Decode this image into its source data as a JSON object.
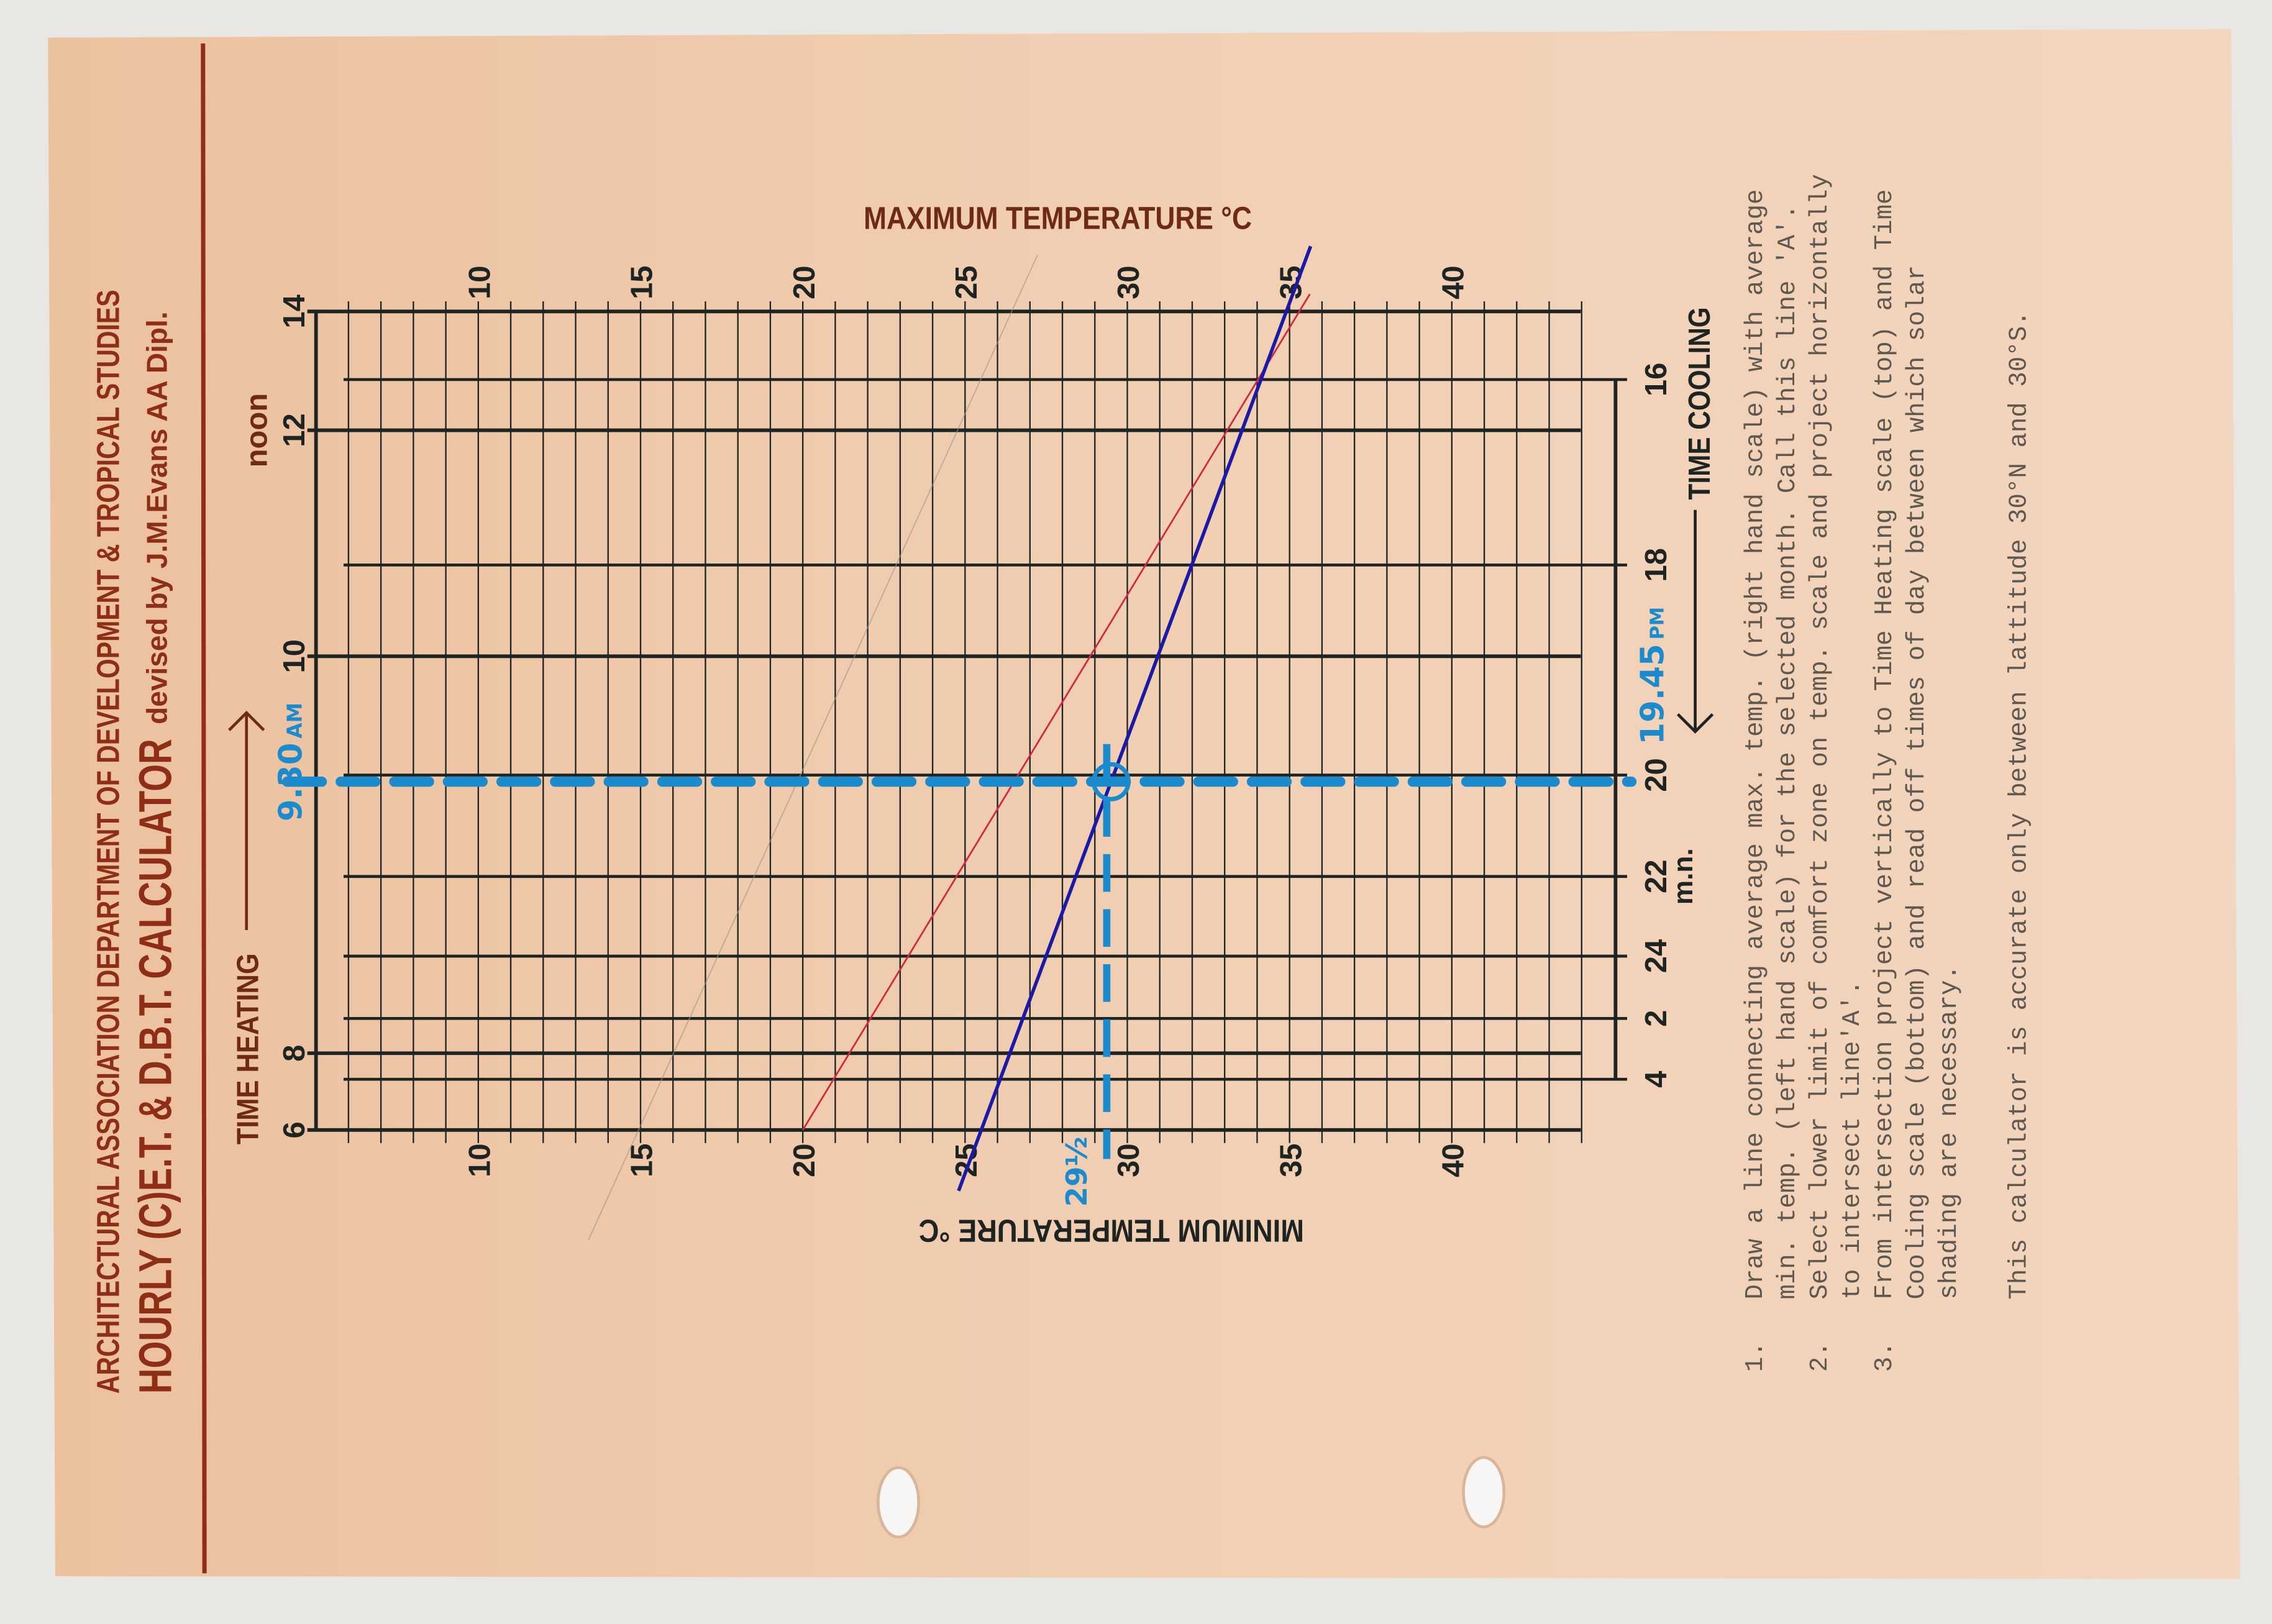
{
  "header": {
    "institution": "ARCHITECTURAL ASSOCIATION DEPARTMENT OF DEVELOPMENT & TROPICAL STUDIES",
    "title": "HOURLY (C)E.T. & D.B.T. CALCULATOR",
    "byline": "devised by J.M.Evans AA Dipl."
  },
  "colors": {
    "paper": "#f1cfb3",
    "title_ink": "#8e2e16",
    "grid": "#1d2422",
    "line_a_red": "#d02a3c",
    "line_blue": "#1a1aa6",
    "marker_blue": "#1b8bcd"
  },
  "chart_data": {
    "type": "nomogram",
    "top_axis_label": "MAXIMUM TEMPERATURE °C",
    "bottom_axis_label": "MINIMUM TEMPERATURE °C",
    "temperature_range": [
      5,
      44
    ],
    "temperature_ticks": [
      "10",
      "15",
      "20",
      "25",
      "30",
      "35",
      "40"
    ],
    "time_heating": {
      "label": "TIME HEATING",
      "ticks": [
        "14",
        "12",
        "10",
        "8",
        "6"
      ],
      "noon_label": "noon"
    },
    "time_cooling": {
      "label": "TIME COOLING",
      "ticks": [
        "16",
        "18",
        "20",
        "22",
        "24",
        "2",
        "4"
      ],
      "midnight_label": "m.n."
    },
    "lines": [
      {
        "color": "red",
        "min_temp": 20,
        "max_temp": 35.3
      },
      {
        "color": "blue",
        "min_temp": 25.5,
        "max_temp": 34.9
      }
    ],
    "annotations": {
      "comfort_limit": "29½",
      "comfort_limit_value": 29.5,
      "heating_time": "9.30",
      "heating_suffix": "AM",
      "cooling_time": "19.45",
      "cooling_suffix": "PM"
    }
  },
  "instructions": [
    {
      "num": "1.",
      "lines": [
        "Draw a line connecting average max. temp. (right hand scale) with average",
        "min. temp. (left hand scale) for the selected month.  Call this line 'A'."
      ]
    },
    {
      "num": "2.",
      "lines": [
        "Select lower limit of comfort zone on temp. scale and project horizontally",
        "to intersect line'A'."
      ]
    },
    {
      "num": "3.",
      "lines": [
        "From intersection project vertically to Time Heating scale (top) and Time",
        "Cooling scale (bottom) and read off times of day between which solar",
        "shading are necessary."
      ]
    }
  ],
  "note": "This calculator is accurate only between lattitude 30°N and 30°S."
}
